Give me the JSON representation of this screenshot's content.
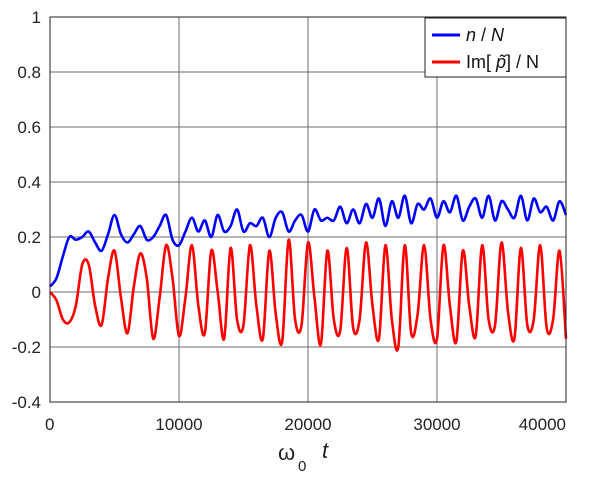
{
  "chart_data": {
    "type": "line",
    "title": "",
    "xlabel": {
      "symbol": "ω",
      "subscript": "0",
      "variable": "t"
    },
    "ylabel": "",
    "xlim": [
      0,
      40000
    ],
    "ylim": [
      -0.4,
      1
    ],
    "xticks": [
      "0",
      "10000",
      "20000",
      "30000",
      "40000"
    ],
    "yticks": [
      "1",
      "0.8",
      "0.6",
      "0.4",
      "0.2",
      "0",
      "-0.2",
      "-0.4"
    ],
    "grid": true,
    "legend_position": "top-right",
    "legend": [
      {
        "label_italic": "n",
        "label_sep": " /  ",
        "label_italic2": "N",
        "color": "#0000ff"
      },
      {
        "label_pre": "Im[  ",
        "label_italic": "p̃",
        "label_post": "] / N",
        "color": "#ff0000"
      }
    ],
    "series": [
      {
        "color": "#0000ff",
        "x": [
          0,
          500,
          1000,
          1500,
          2000,
          2500,
          3000,
          3500,
          4000,
          4500,
          5000,
          5500,
          6000,
          6500,
          7000,
          7500,
          8000,
          8500,
          9000,
          9500,
          10000,
          10500,
          11000,
          11500,
          12000,
          12500,
          13000,
          13500,
          14000,
          14500,
          15000,
          15500,
          16000,
          16500,
          17000,
          17500,
          18000,
          18500,
          19000,
          19500,
          20000,
          20500,
          21000,
          21500,
          22000,
          22500,
          23000,
          23500,
          24000,
          24500,
          25000,
          25500,
          26000,
          26500,
          27000,
          27500,
          28000,
          28500,
          29000,
          29500,
          30000,
          30500,
          31000,
          31500,
          32000,
          32500,
          33000,
          33500,
          34000,
          34500,
          35000,
          35500,
          36000,
          36500,
          37000,
          37500,
          38000,
          38500,
          39000,
          39500,
          40000
        ],
        "y": [
          0.02,
          0.05,
          0.13,
          0.2,
          0.19,
          0.2,
          0.22,
          0.18,
          0.15,
          0.21,
          0.28,
          0.21,
          0.18,
          0.21,
          0.24,
          0.19,
          0.2,
          0.24,
          0.28,
          0.19,
          0.17,
          0.22,
          0.27,
          0.22,
          0.26,
          0.2,
          0.28,
          0.22,
          0.24,
          0.3,
          0.22,
          0.25,
          0.24,
          0.27,
          0.2,
          0.27,
          0.29,
          0.22,
          0.26,
          0.28,
          0.22,
          0.3,
          0.26,
          0.27,
          0.26,
          0.31,
          0.25,
          0.3,
          0.25,
          0.32,
          0.27,
          0.34,
          0.24,
          0.33,
          0.27,
          0.35,
          0.25,
          0.32,
          0.3,
          0.34,
          0.27,
          0.33,
          0.29,
          0.35,
          0.26,
          0.31,
          0.34,
          0.27,
          0.35,
          0.26,
          0.33,
          0.3,
          0.27,
          0.35,
          0.26,
          0.34,
          0.29,
          0.31,
          0.26,
          0.33,
          0.28
        ]
      },
      {
        "color": "#ff0000",
        "x": [
          0,
          500,
          1000,
          1500,
          2000,
          2500,
          3000,
          3500,
          4000,
          4500,
          5000,
          5500,
          6000,
          6500,
          7000,
          7500,
          8000,
          8500,
          9000,
          9500,
          10000,
          10500,
          11000,
          11500,
          12000,
          12500,
          13000,
          13500,
          14000,
          14500,
          15000,
          15500,
          16000,
          16500,
          17000,
          17500,
          18000,
          18500,
          19000,
          19500,
          20000,
          20500,
          21000,
          21500,
          22000,
          22500,
          23000,
          23500,
          24000,
          24500,
          25000,
          25500,
          26000,
          26500,
          27000,
          27500,
          28000,
          28500,
          29000,
          29500,
          30000,
          30500,
          31000,
          31500,
          32000,
          32500,
          33000,
          33500,
          34000,
          34500,
          35000,
          35500,
          36000,
          36500,
          37000,
          37500,
          38000,
          38500,
          39000,
          39500,
          40000
        ],
        "y": [
          0.0,
          -0.03,
          -0.1,
          -0.11,
          -0.05,
          0.1,
          0.1,
          -0.05,
          -0.12,
          0.05,
          0.15,
          -0.02,
          -0.15,
          0.02,
          0.14,
          0.05,
          -0.17,
          -0.02,
          0.17,
          0.05,
          -0.16,
          -0.02,
          0.17,
          -0.05,
          -0.15,
          0.15,
          0.0,
          -0.17,
          0.16,
          -0.1,
          -0.12,
          0.17,
          -0.05,
          -0.17,
          0.15,
          -0.08,
          -0.18,
          0.19,
          -0.1,
          -0.12,
          0.18,
          -0.02,
          -0.19,
          0.15,
          -0.1,
          -0.14,
          0.16,
          -0.13,
          -0.1,
          0.18,
          -0.05,
          -0.17,
          0.17,
          -0.1,
          -0.2,
          0.17,
          -0.15,
          -0.08,
          0.17,
          -0.1,
          -0.17,
          0.17,
          -0.05,
          -0.18,
          0.15,
          -0.05,
          -0.16,
          0.17,
          -0.1,
          -0.12,
          0.18,
          -0.07,
          -0.17,
          0.16,
          -0.12,
          -0.1,
          0.17,
          -0.13,
          -0.1,
          0.15,
          -0.17
        ]
      }
    ]
  }
}
